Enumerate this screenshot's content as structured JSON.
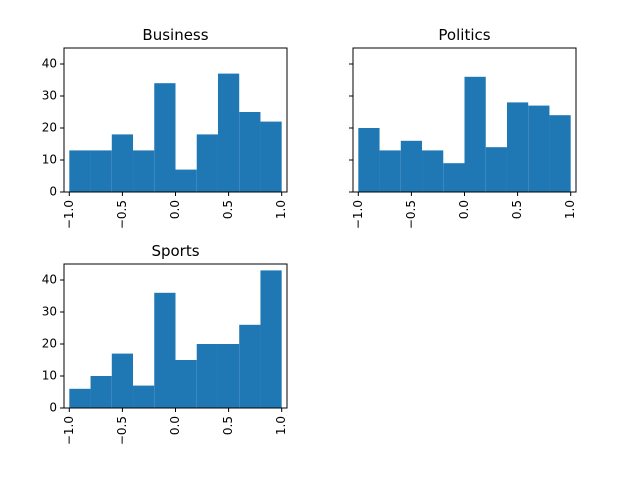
{
  "chart_data": [
    {
      "type": "bar",
      "title": "Business",
      "bin_edges": [
        -1.0,
        -0.8,
        -0.6,
        -0.4,
        -0.2,
        0.0,
        0.2,
        0.4,
        0.6,
        0.8,
        1.0
      ],
      "values": [
        13,
        13,
        18,
        13,
        34,
        7,
        18,
        37,
        25,
        22
      ],
      "xlim": [
        -1.05,
        1.05
      ],
      "ylim": [
        0,
        45
      ],
      "xticks": [
        "−1.0",
        "−0.5",
        "0.0",
        "0.5",
        "1.0"
      ],
      "xtick_values": [
        -1.0,
        -0.5,
        0.0,
        0.5,
        1.0
      ],
      "yticks": [
        "0",
        "10",
        "20",
        "30",
        "40"
      ],
      "ytick_values": [
        0,
        10,
        20,
        30,
        40
      ],
      "color": "#1f77b4",
      "grid": false
    },
    {
      "type": "bar",
      "title": "Politics",
      "bin_edges": [
        -1.0,
        -0.8,
        -0.6,
        -0.4,
        -0.2,
        0.0,
        0.2,
        0.4,
        0.6,
        0.8,
        1.0
      ],
      "values": [
        20,
        13,
        16,
        13,
        9,
        36,
        14,
        28,
        27,
        24
      ],
      "xlim": [
        -1.05,
        1.05
      ],
      "ylim": [
        0,
        45
      ],
      "xticks": [
        "−1.0",
        "−0.5",
        "0.0",
        "0.5",
        "1.0"
      ],
      "xtick_values": [
        -1.0,
        -0.5,
        0.0,
        0.5,
        1.0
      ],
      "yticks": [],
      "ytick_values": [
        0,
        10,
        20,
        30,
        40
      ],
      "color": "#1f77b4",
      "grid": false
    },
    {
      "type": "bar",
      "title": "Sports",
      "bin_edges": [
        -1.0,
        -0.8,
        -0.6,
        -0.4,
        -0.2,
        0.0,
        0.2,
        0.4,
        0.6,
        0.8,
        1.0
      ],
      "values": [
        6,
        10,
        17,
        7,
        36,
        15,
        20,
        20,
        26,
        43
      ],
      "xlim": [
        -1.05,
        1.05
      ],
      "ylim": [
        0,
        45
      ],
      "xticks": [
        "−1.0",
        "−0.5",
        "0.0",
        "0.5",
        "1.0"
      ],
      "xtick_values": [
        -1.0,
        -0.5,
        0.0,
        0.5,
        1.0
      ],
      "yticks": [
        "0",
        "10",
        "20",
        "30",
        "40"
      ],
      "ytick_values": [
        0,
        10,
        20,
        30,
        40
      ],
      "color": "#1f77b4",
      "grid": false
    }
  ]
}
